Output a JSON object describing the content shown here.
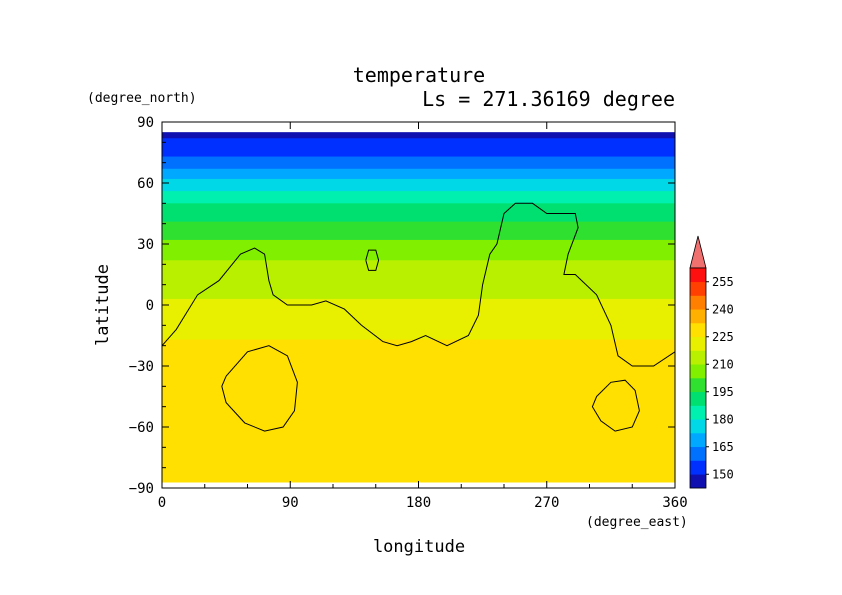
{
  "chart_data": {
    "type": "heatmap",
    "title": "temperature",
    "subtitle": "Ls = 271.36169 degree",
    "xlabel": "longitude",
    "ylabel": "latitude",
    "x_unit": "(degree_east)",
    "y_unit": "(degree_north)",
    "xlim": [
      0,
      360
    ],
    "ylim": [
      -90,
      90
    ],
    "x_ticks": [
      0,
      90,
      180,
      270,
      360
    ],
    "y_ticks": [
      -90,
      -60,
      -30,
      0,
      30,
      60,
      90
    ],
    "x_tick_labels": [
      "0",
      "90",
      "180",
      "270",
      "360"
    ],
    "y_tick_labels": [
      "−90",
      "−60",
      "−30",
      "0",
      "30",
      "60",
      "90"
    ],
    "data_lat_range": [
      -87,
      85
    ],
    "colorbar": {
      "levels": [
        142.5,
        150,
        157.5,
        165,
        172.5,
        180,
        187.5,
        195,
        202.5,
        210,
        217.5,
        225,
        232.5,
        240,
        247.5,
        255,
        262.5
      ],
      "colors": [
        "#1010b0",
        "#0030ff",
        "#0070ff",
        "#00a8ff",
        "#00d8e8",
        "#00f0b0",
        "#00e070",
        "#30e030",
        "#80f000",
        "#b8f000",
        "#e8f000",
        "#ffe000",
        "#ffb000",
        "#ff8000",
        "#ff4000",
        "#ff1010"
      ],
      "over_color": "#f07070",
      "tick_labels": [
        "150",
        "165",
        "180",
        "195",
        "210",
        "225",
        "240",
        "255"
      ]
    },
    "latitude_profile": [
      {
        "lat": 85,
        "temp": 148
      },
      {
        "lat": 75,
        "temp": 155
      },
      {
        "lat": 65,
        "temp": 168
      },
      {
        "lat": 55,
        "temp": 182
      },
      {
        "lat": 45,
        "temp": 192
      },
      {
        "lat": 35,
        "temp": 200
      },
      {
        "lat": 25,
        "temp": 208
      },
      {
        "lat": 15,
        "temp": 214
      },
      {
        "lat": 5,
        "temp": 217
      },
      {
        "lat": -5,
        "temp": 220
      },
      {
        "lat": -15,
        "temp": 224
      },
      {
        "lat": -25,
        "temp": 228
      },
      {
        "lat": -40,
        "temp": 230
      },
      {
        "lat": -55,
        "temp": 231
      },
      {
        "lat": -70,
        "temp": 230
      },
      {
        "lat": -87,
        "temp": 231
      }
    ],
    "contours": [
      {
        "points": [
          [
            0,
            -20
          ],
          [
            10,
            -12
          ],
          [
            25,
            5
          ],
          [
            40,
            12
          ],
          [
            55,
            25
          ],
          [
            65,
            28
          ],
          [
            72,
            25
          ],
          [
            75,
            12
          ],
          [
            78,
            5
          ],
          [
            88,
            0
          ],
          [
            105,
            0
          ],
          [
            115,
            2
          ],
          [
            128,
            -2
          ],
          [
            140,
            -10
          ],
          [
            155,
            -18
          ],
          [
            165,
            -20
          ],
          [
            175,
            -18
          ],
          [
            185,
            -15
          ],
          [
            200,
            -20
          ],
          [
            215,
            -15
          ],
          [
            222,
            -5
          ],
          [
            225,
            10
          ],
          [
            230,
            25
          ],
          [
            235,
            30
          ],
          [
            240,
            45
          ],
          [
            248,
            50
          ],
          [
            260,
            50
          ],
          [
            270,
            45
          ],
          [
            290,
            45
          ],
          [
            292,
            38
          ],
          [
            285,
            25
          ],
          [
            282,
            15
          ],
          [
            290,
            15
          ],
          [
            305,
            5
          ],
          [
            315,
            -10
          ],
          [
            320,
            -25
          ],
          [
            330,
            -30
          ],
          [
            345,
            -30
          ],
          [
            360,
            -23
          ]
        ]
      },
      {
        "points": [
          [
            143,
            22
          ],
          [
            145,
            27
          ],
          [
            150,
            27
          ],
          [
            152,
            22
          ],
          [
            150,
            17
          ],
          [
            145,
            17
          ],
          [
            143,
            22
          ]
        ]
      },
      {
        "points": [
          [
            45,
            -35
          ],
          [
            60,
            -23
          ],
          [
            75,
            -20
          ],
          [
            88,
            -25
          ],
          [
            95,
            -38
          ],
          [
            93,
            -52
          ],
          [
            85,
            -60
          ],
          [
            72,
            -62
          ],
          [
            58,
            -58
          ],
          [
            45,
            -48
          ],
          [
            42,
            -40
          ],
          [
            45,
            -35
          ]
        ]
      },
      {
        "points": [
          [
            305,
            -45
          ],
          [
            315,
            -38
          ],
          [
            325,
            -37
          ],
          [
            332,
            -42
          ],
          [
            335,
            -52
          ],
          [
            330,
            -60
          ],
          [
            318,
            -62
          ],
          [
            308,
            -57
          ],
          [
            302,
            -50
          ],
          [
            305,
            -45
          ]
        ]
      }
    ]
  }
}
